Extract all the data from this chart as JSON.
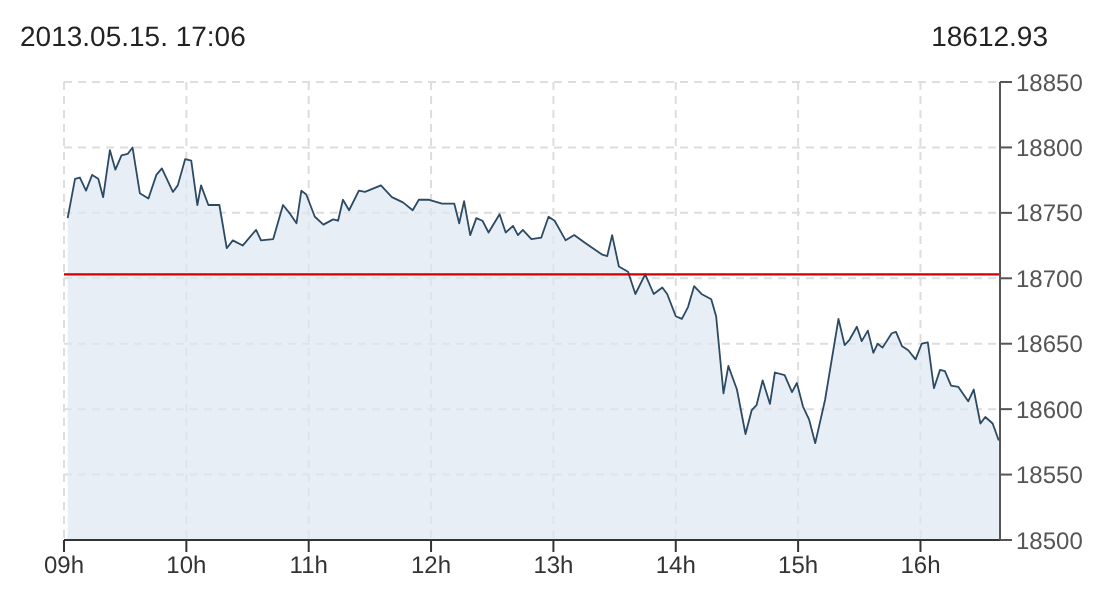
{
  "chart_data": {
    "type": "area",
    "title": "2013.05.15. 17:06",
    "subtitle": "18612.93",
    "x": [
      9.03,
      9.09,
      9.13,
      9.18,
      9.23,
      9.28,
      9.32,
      9.375,
      9.42,
      9.47,
      9.52,
      9.56,
      9.62,
      9.69,
      9.755,
      9.8,
      9.89,
      9.93,
      9.99,
      10.04,
      10.09,
      10.12,
      10.18,
      10.27,
      10.33,
      10.38,
      10.46,
      10.57,
      10.61,
      10.71,
      10.79,
      10.85,
      10.9,
      10.94,
      10.98,
      11.05,
      11.12,
      11.2,
      11.24,
      11.28,
      11.33,
      11.41,
      11.46,
      11.59,
      11.68,
      11.77,
      11.85,
      11.9,
      11.985,
      12.09,
      12.19,
      12.23,
      12.27,
      12.32,
      12.37,
      12.42,
      12.47,
      12.56,
      12.61,
      12.67,
      12.71,
      12.75,
      12.82,
      12.9,
      12.96,
      13.01,
      13.1,
      13.17,
      13.26,
      13.4,
      13.44,
      13.48,
      13.535,
      13.61,
      13.67,
      13.75,
      13.82,
      13.89,
      13.93,
      14.0,
      14.05,
      14.1,
      14.15,
      14.21,
      14.29,
      14.33,
      14.39,
      14.43,
      14.5,
      14.57,
      14.62,
      14.66,
      14.71,
      14.77,
      14.81,
      14.89,
      14.95,
      14.99,
      15.04,
      15.09,
      15.14,
      15.22,
      15.33,
      15.38,
      15.42,
      15.48,
      15.52,
      15.57,
      15.615,
      15.65,
      15.69,
      15.765,
      15.8,
      15.85,
      15.9,
      15.96,
      16.01,
      16.06,
      16.11,
      16.16,
      16.2,
      16.25,
      16.31,
      16.39,
      16.435,
      16.49,
      16.53,
      16.59,
      16.64
    ],
    "series": [
      {
        "color": "#2c4a63",
        "values": [
          18746,
          18776,
          18777,
          18767,
          18779,
          18776,
          18762,
          18798,
          18783,
          18794,
          18795,
          18800,
          18765,
          18761,
          18779,
          18784,
          18766,
          18771,
          18791,
          18790,
          18756,
          18771,
          18756,
          18756,
          18723,
          18729,
          18725,
          18737,
          18729,
          18730,
          18756,
          18749,
          18742,
          18767,
          18764,
          18747,
          18741,
          18745,
          18744,
          18760,
          18752,
          18767,
          18766,
          18771,
          18762,
          18758,
          18752,
          18760,
          18760,
          18757,
          18757,
          18742,
          18759,
          18733,
          18746,
          18744,
          18735,
          18749,
          18735,
          18740,
          18733,
          18737,
          18730,
          18731,
          18747,
          18744,
          18729,
          18733,
          18727,
          18718,
          18717,
          18733,
          18709,
          18705,
          18688,
          18703,
          18688,
          18693,
          18688,
          18671,
          18669,
          18678,
          18694,
          18688,
          18684,
          18671,
          18612,
          18633,
          18615,
          18581,
          18599,
          18603,
          18622,
          18604,
          18628,
          18626,
          18613,
          18620,
          18602,
          18592,
          18574,
          18607,
          18669,
          18649,
          18653,
          18663,
          18652,
          18660,
          18643,
          18650,
          18647,
          18658,
          18659,
          18648,
          18645,
          18638,
          18650,
          18651,
          18616,
          18630,
          18629,
          18618,
          18617,
          18606,
          18615,
          18589,
          18594,
          18589,
          18576
        ]
      }
    ],
    "xlim": [
      9,
      16.65
    ],
    "xticks": [
      {
        "value": 9,
        "label": "09h"
      },
      {
        "value": 10,
        "label": "10h"
      },
      {
        "value": 11,
        "label": "11h"
      },
      {
        "value": 12,
        "label": "12h"
      },
      {
        "value": 13,
        "label": "13h"
      },
      {
        "value": 14,
        "label": "14h"
      },
      {
        "value": 15,
        "label": "15h"
      },
      {
        "value": 16,
        "label": "16h"
      }
    ],
    "ylim": [
      18500,
      18850
    ],
    "yticks": [
      18500,
      18550,
      18600,
      18650,
      18700,
      18750,
      18800,
      18850
    ],
    "ref_lines": [
      {
        "axis": "y",
        "value": 18703,
        "color": "#cc0000"
      }
    ],
    "grid": true,
    "marker": "none",
    "line_style": "solid"
  }
}
